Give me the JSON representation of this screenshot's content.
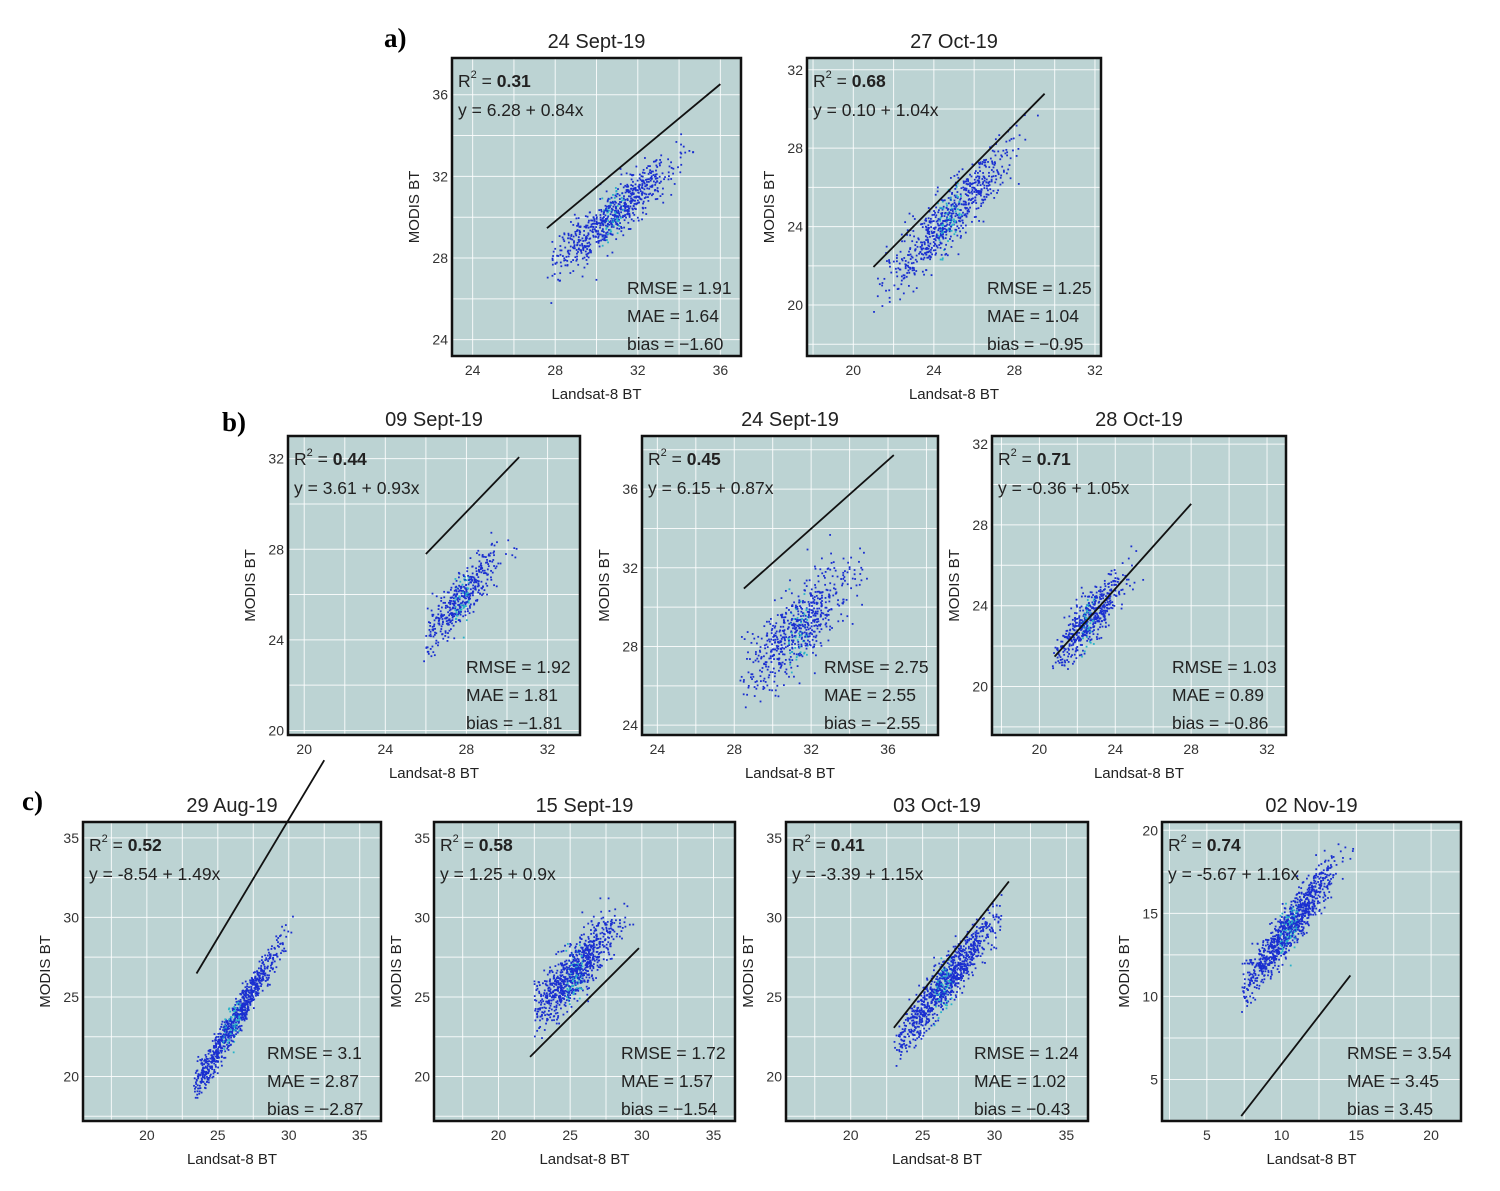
{
  "figure": {
    "rows": [
      {
        "label": "a)",
        "panels": [
          0,
          1
        ]
      },
      {
        "label": "b)",
        "panels": [
          2,
          3,
          4
        ]
      },
      {
        "label": "c)",
        "panels": [
          5,
          6,
          7,
          8
        ]
      }
    ]
  },
  "colors": {
    "plot_background": "#bcd3d3",
    "grid": "#ffffff",
    "points": "#1a2fd0",
    "dense_points": "#29b3c9",
    "regression_line": "#111111"
  },
  "chart_data": [
    {
      "type": "scatter",
      "title": "24 Sept-19",
      "xlabel": "Landsat-8 BT",
      "ylabel": "MODIS BT",
      "xlim": [
        23,
        37
      ],
      "ylim": [
        23.2,
        37.8
      ],
      "xticks": [
        24,
        28,
        32,
        36
      ],
      "yticks": [
        24,
        28,
        32,
        36
      ],
      "r2_label": "R",
      "r2_sup": "2",
      "r2_eq": " = ",
      "r2_value": "0.31",
      "equation": "y = 6.28 + 0.84x",
      "intercept": 6.28,
      "slope": 0.84,
      "fit_x_range": [
        27.6,
        36
      ],
      "rmse": "RMSE = 1.91",
      "mae": "MAE = 1.64",
      "bias": "bias = −1.60",
      "cloud": {
        "cx": 30.8,
        "cy": 30.1,
        "sx": 1.4,
        "noise": 0.62,
        "n": 750,
        "x_range": [
          27.6,
          34.8
        ]
      }
    },
    {
      "type": "scatter",
      "title": "27 Oct-19",
      "xlabel": "Landsat-8 BT",
      "ylabel": "MODIS BT",
      "xlim": [
        17.7,
        32.3
      ],
      "ylim": [
        17.4,
        32.6
      ],
      "xticks": [
        20,
        24,
        28,
        32
      ],
      "yticks": [
        20,
        24,
        28,
        32
      ],
      "r2_label": "R",
      "r2_sup": "2",
      "r2_eq": " = ",
      "r2_value": "0.68",
      "equation": "y = 0.10 + 1.04x",
      "intercept": 0.1,
      "slope": 1.04,
      "fit_x_range": [
        21,
        29.5
      ],
      "rmse": "RMSE = 1.25",
      "mae": "MAE = 1.04",
      "bias": "bias = −0.95",
      "cloud": {
        "cx": 24.8,
        "cy": 24.4,
        "sx": 1.5,
        "noise": 0.75,
        "n": 750,
        "x_range": [
          21,
          29.6
        ]
      }
    },
    {
      "type": "scatter",
      "title": "09 Sept-19",
      "xlabel": "Landsat-8 BT",
      "ylabel": "MODIS BT",
      "xlim": [
        19.2,
        33.6
      ],
      "ylim": [
        19.8,
        33.0
      ],
      "xticks": [
        20,
        24,
        28,
        32
      ],
      "yticks": [
        20,
        24,
        28,
        32
      ],
      "r2_label": "R",
      "r2_sup": "2",
      "r2_eq": " = ",
      "r2_value": "0.44",
      "equation": "y = 3.61 + 0.93x",
      "intercept": 3.61,
      "slope": 0.93,
      "fit_x_range": [
        26,
        30.6
      ],
      "rmse": "RMSE = 1.92",
      "mae": "MAE = 1.81",
      "bias": "bias = −1.81",
      "cloud": {
        "cx": 27.8,
        "cy": 25.9,
        "sx": 0.9,
        "noise": 0.55,
        "n": 450,
        "x_range": [
          25.8,
          30.6
        ]
      }
    },
    {
      "type": "scatter",
      "title": "24 Sept-19",
      "xlabel": "Landsat-8 BT",
      "ylabel": "MODIS BT",
      "xlim": [
        23.2,
        38.6
      ],
      "ylim": [
        23.5,
        38.7
      ],
      "xticks": [
        24,
        28,
        32,
        36
      ],
      "yticks": [
        24,
        28,
        32,
        36
      ],
      "r2_label": "R",
      "r2_sup": "2",
      "r2_eq": " = ",
      "r2_value": "0.45",
      "equation": "y = 6.15 + 0.87x",
      "intercept": 6.15,
      "slope": 0.87,
      "fit_x_range": [
        28.5,
        36.3
      ],
      "rmse": "RMSE = 2.75",
      "mae": "MAE = 2.55",
      "bias": "bias = −2.55",
      "cloud": {
        "cx": 31.3,
        "cy": 28.9,
        "sx": 1.4,
        "noise": 1.0,
        "n": 650,
        "x_range": [
          28.3,
          36
        ]
      }
    },
    {
      "type": "scatter",
      "title": "28 Oct-19",
      "xlabel": "Landsat-8 BT",
      "ylabel": "MODIS BT",
      "xlim": [
        17.5,
        33.0
      ],
      "ylim": [
        17.6,
        32.4
      ],
      "xticks": [
        20,
        24,
        28,
        32
      ],
      "yticks": [
        20,
        24,
        28,
        32
      ],
      "r2_label": "R",
      "r2_sup": "2",
      "r2_eq": " = ",
      "r2_value": "0.71",
      "equation": "y = -0.36 + 1.05x",
      "intercept": -0.36,
      "slope": 1.05,
      "fit_x_range": [
        20.8,
        28
      ],
      "rmse": "RMSE = 1.03",
      "mae": "MAE = 0.89",
      "bias": "bias = −0.86",
      "cloud": {
        "cx": 22.6,
        "cy": 23.3,
        "sx": 0.9,
        "noise": 0.6,
        "n": 550,
        "x_range": [
          20.7,
          25.8
        ]
      }
    },
    {
      "type": "scatter",
      "title": "29 Aug-19",
      "xlabel": "Landsat-8 BT",
      "ylabel": "MODIS BT",
      "xlim": [
        15.5,
        36.5
      ],
      "ylim": [
        17.2,
        36.0
      ],
      "xticks": [
        20,
        25,
        30,
        35
      ],
      "yticks": [
        20,
        25,
        30,
        35
      ],
      "r2_label": "R",
      "r2_sup": "2",
      "r2_eq": " = ",
      "r2_value": "0.52",
      "equation": "y = -8.54 + 1.49x",
      "intercept": -8.54,
      "slope": 1.49,
      "fit_x_range": [
        23.5,
        32.5
      ],
      "rmse": "RMSE = 3.1",
      "mae": "MAE = 2.87",
      "bias": "bias = −2.87",
      "cloud": {
        "cx": 26.0,
        "cy": 23.2,
        "sx": 1.6,
        "noise": 0.55,
        "n": 900,
        "x_range": [
          23.3,
          31
        ]
      }
    },
    {
      "type": "scatter",
      "title": "15 Sept-19",
      "xlabel": "Landsat-8 BT",
      "ylabel": "MODIS BT",
      "xlim": [
        15.5,
        36.5
      ],
      "ylim": [
        17.2,
        36.0
      ],
      "xticks": [
        20,
        25,
        30,
        35
      ],
      "yticks": [
        20,
        25,
        30,
        35
      ],
      "r2_label": "R",
      "r2_sup": "2",
      "r2_eq": " = ",
      "r2_value": "0.58",
      "equation": "y = 1.25 + 0.9x",
      "intercept": 1.25,
      "slope": 0.9,
      "fit_x_range": [
        22.2,
        29.8
      ],
      "rmse": "RMSE = 1.72",
      "mae": "MAE = 1.57",
      "bias": "bias = −1.54",
      "cloud": {
        "cx": 25.3,
        "cy": 26.6,
        "sx": 1.5,
        "noise": 0.9,
        "n": 900,
        "x_range": [
          22.5,
          29.5
        ]
      }
    },
    {
      "type": "scatter",
      "title": "03 Oct-19",
      "xlabel": "Landsat-8 BT",
      "ylabel": "MODIS BT",
      "xlim": [
        15.5,
        36.5
      ],
      "ylim": [
        17.2,
        36.0
      ],
      "xticks": [
        20,
        25,
        30,
        35
      ],
      "yticks": [
        20,
        25,
        30,
        35
      ],
      "r2_label": "R",
      "r2_sup": "2",
      "r2_eq": " = ",
      "r2_value": "0.41",
      "equation": "y = -3.39 + 1.15x",
      "intercept": -3.39,
      "slope": 1.15,
      "fit_x_range": [
        23,
        31
      ],
      "rmse": "RMSE = 1.24",
      "mae": "MAE = 1.02",
      "bias": "bias = −0.43",
      "cloud": {
        "cx": 26.5,
        "cy": 25.8,
        "sx": 1.7,
        "noise": 0.75,
        "n": 1000,
        "x_range": [
          23,
          30.5
        ]
      }
    },
    {
      "type": "scatter",
      "title": "02 Nov-19",
      "xlabel": "Landsat-8 BT",
      "ylabel": "MODIS BT",
      "xlim": [
        2.0,
        22.0
      ],
      "ylim": [
        2.5,
        20.5
      ],
      "xticks": [
        5,
        10,
        15,
        20
      ],
      "yticks": [
        5,
        10,
        15,
        20
      ],
      "r2_label": "R",
      "r2_sup": "2",
      "r2_eq": " = ",
      "r2_value": "0.74",
      "equation": "y = -5.67 + 1.16x",
      "intercept": -5.67,
      "slope": 1.16,
      "fit_x_range": [
        7.3,
        14.6
      ],
      "rmse": "RMSE = 3.54",
      "mae": "MAE = 3.45",
      "bias": "bias = 3.45",
      "cloud": {
        "cx": 10.5,
        "cy": 14.1,
        "sx": 1.5,
        "noise": 0.7,
        "n": 1000,
        "x_range": [
          7.3,
          14.8
        ]
      }
    }
  ]
}
